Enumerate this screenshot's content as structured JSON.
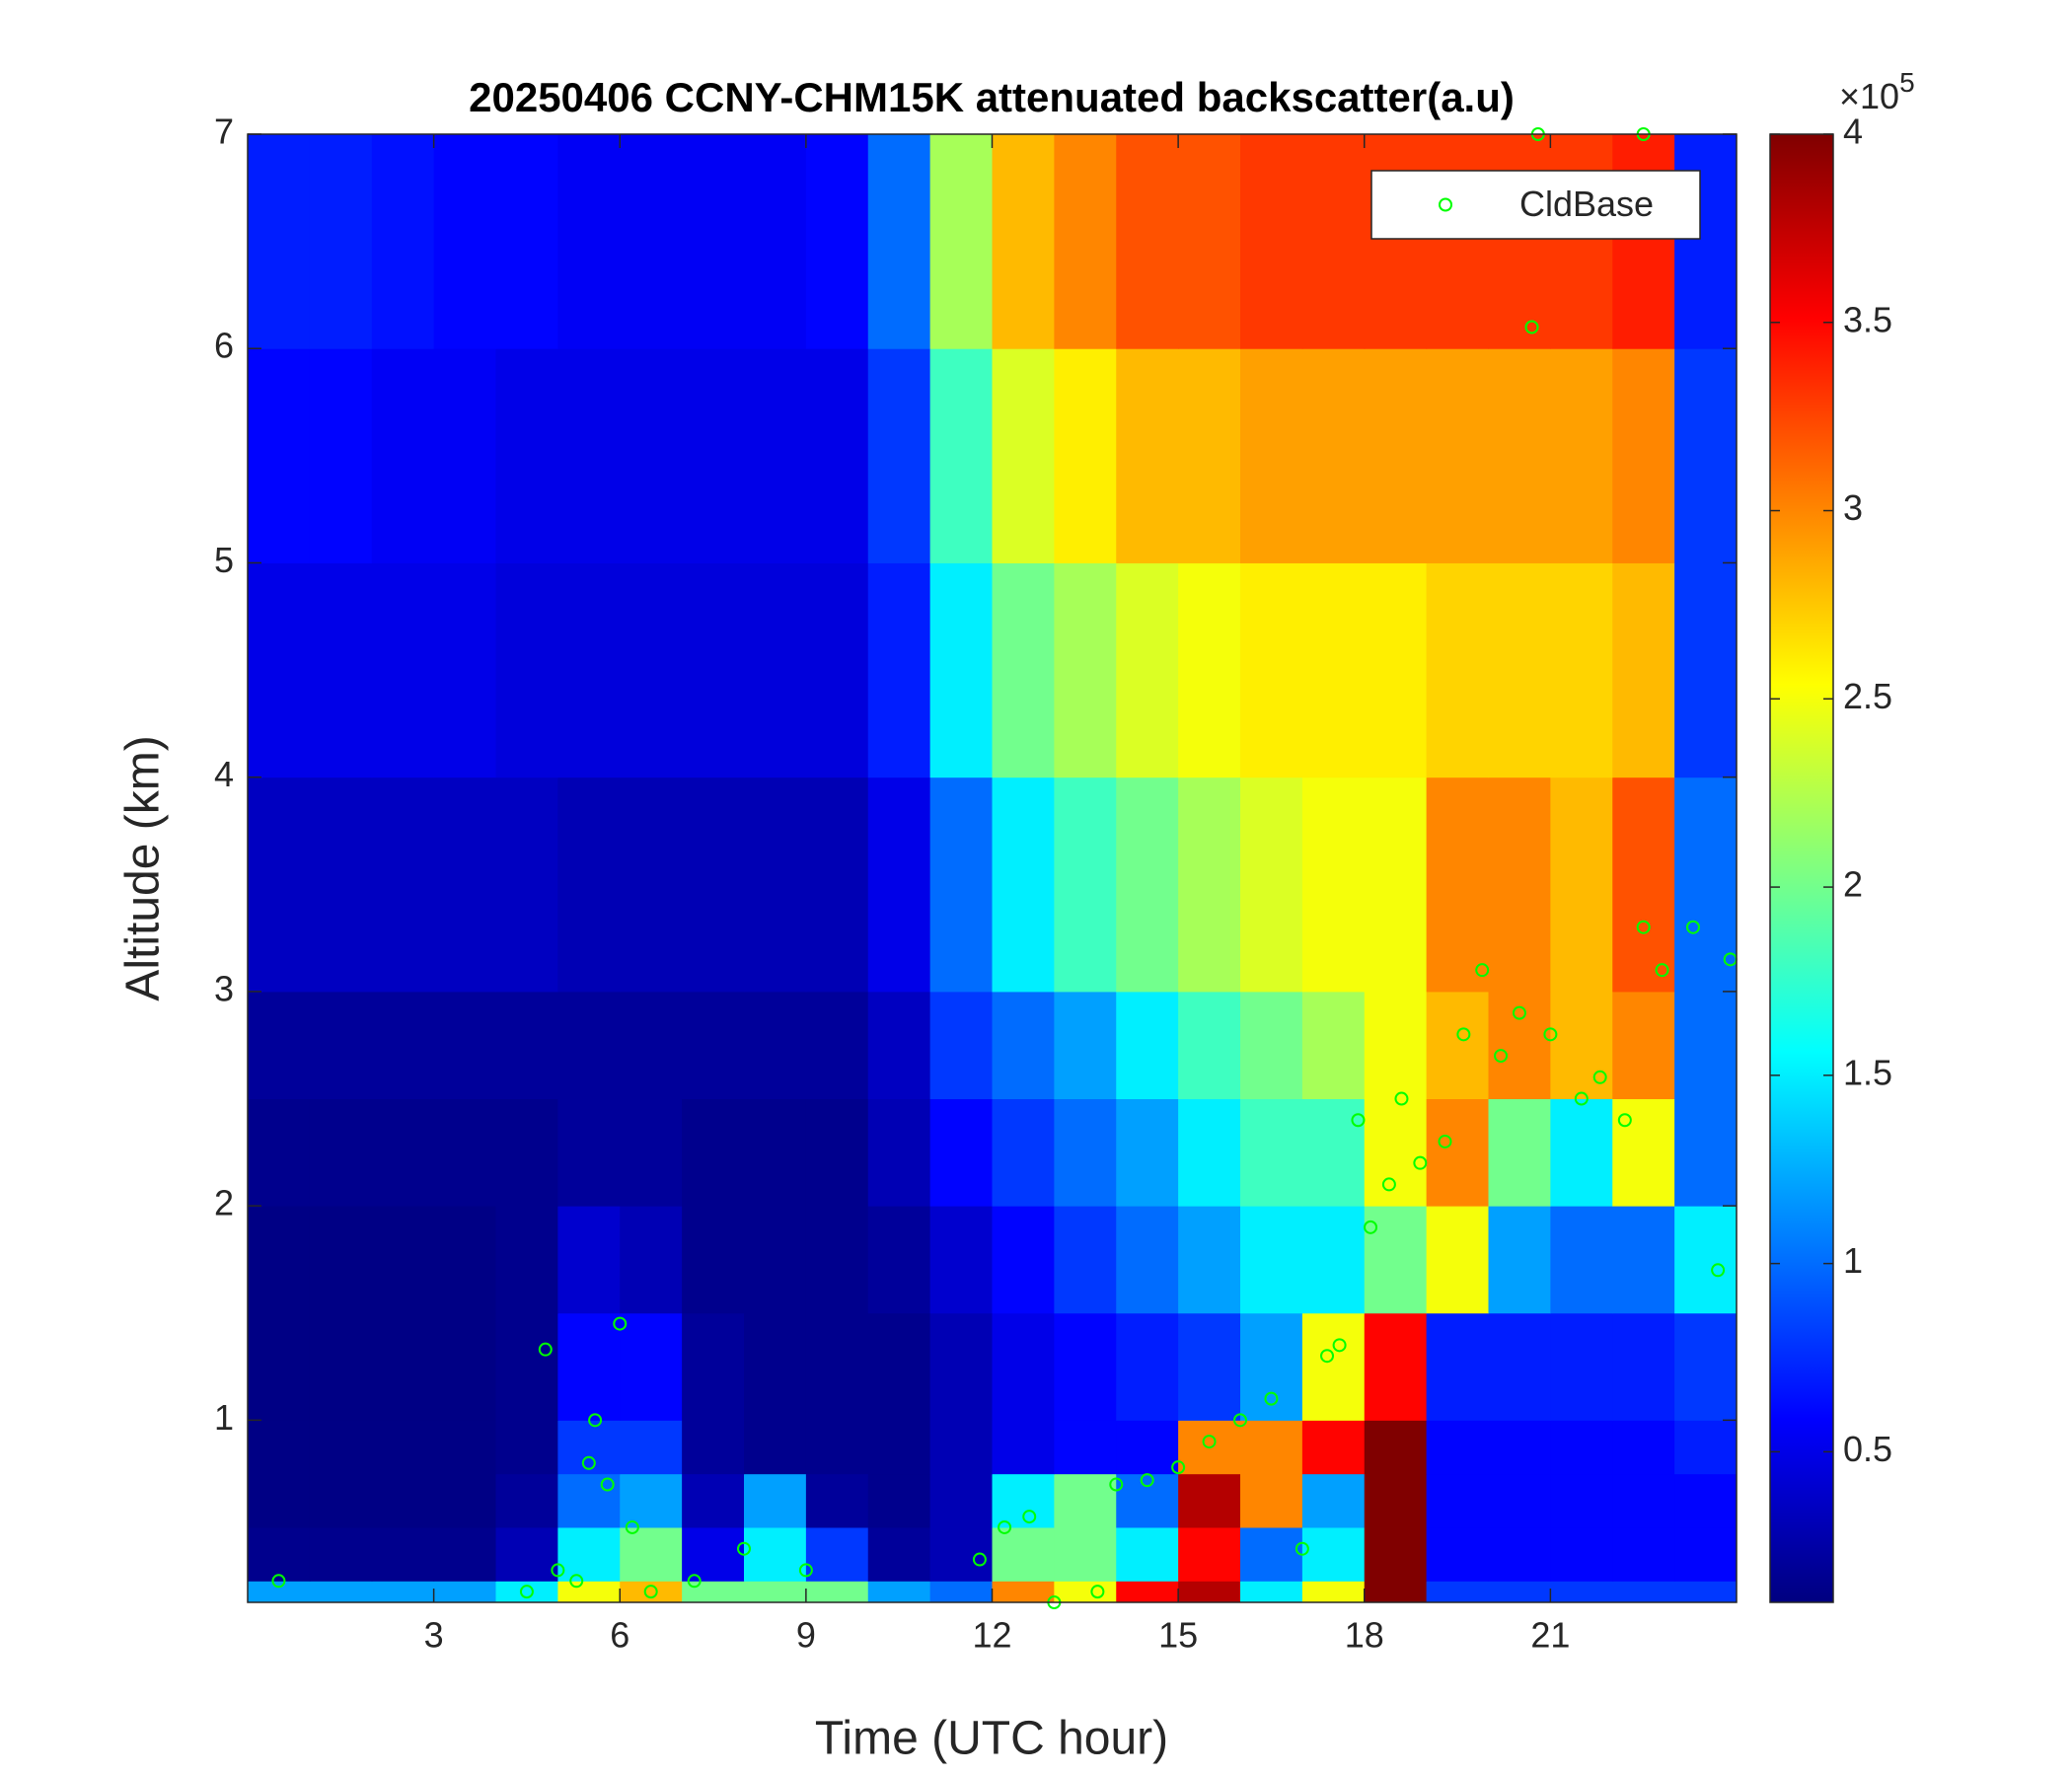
{
  "chart_data": {
    "type": "heatmap",
    "title": "20250406 CCNY-CHM15K attenuated backscatter(a.u)",
    "xlabel": "Time (UTC hour)",
    "ylabel": "Altitude (km)",
    "xlim": [
      0,
      24
    ],
    "ylim": [
      0.15,
      7
    ],
    "xticks": [
      3,
      6,
      9,
      12,
      15,
      18,
      21
    ],
    "yticks": [
      1,
      2,
      3,
      4,
      5,
      6,
      7
    ],
    "colormap": "jet",
    "clim": [
      0.1,
      4
    ],
    "cticks": [
      0.5,
      1,
      1.5,
      2,
      2.5,
      3,
      3.5,
      4
    ],
    "cbar_multiplier": "×10",
    "cbar_exponent": "5",
    "x_edges": [
      0,
      1,
      2,
      3,
      4,
      5,
      6,
      7,
      8,
      9,
      10,
      11,
      12,
      13,
      14,
      15,
      16,
      17,
      18,
      19,
      20,
      21,
      22,
      23,
      24
    ],
    "y_edges": [
      0.15,
      0.25,
      0.5,
      0.75,
      1,
      1.5,
      2,
      2.5,
      3,
      4,
      5,
      6,
      7
    ],
    "z": [
      [
        1.2,
        1.2,
        1.2,
        1.2,
        1.5,
        2.5,
        2.8,
        2.0,
        2.0,
        2.0,
        1.2,
        1.0,
        3.0,
        2.5,
        3.5,
        3.8,
        1.5,
        2.5,
        4.0,
        0.8,
        0.8,
        0.8,
        0.8,
        0.8
      ],
      [
        0.15,
        0.15,
        0.15,
        0.15,
        0.3,
        1.5,
        2.0,
        0.5,
        1.5,
        0.8,
        0.2,
        0.3,
        2.0,
        2.0,
        1.5,
        3.5,
        1.0,
        1.5,
        4.0,
        0.6,
        0.6,
        0.6,
        0.6,
        0.6
      ],
      [
        0.12,
        0.12,
        0.12,
        0.12,
        0.2,
        1.0,
        1.2,
        0.3,
        1.2,
        0.2,
        0.15,
        0.3,
        1.5,
        2.0,
        1.0,
        3.8,
        3.0,
        1.2,
        4.0,
        0.6,
        0.6,
        0.6,
        0.6,
        0.6
      ],
      [
        0.12,
        0.12,
        0.12,
        0.12,
        0.15,
        0.8,
        0.8,
        0.2,
        0.15,
        0.15,
        0.15,
        0.3,
        0.5,
        0.6,
        0.6,
        3.0,
        3.0,
        3.5,
        4.0,
        0.6,
        0.6,
        0.6,
        0.6,
        0.7
      ],
      [
        0.12,
        0.12,
        0.12,
        0.12,
        0.15,
        0.6,
        0.6,
        0.2,
        0.15,
        0.15,
        0.15,
        0.3,
        0.5,
        0.6,
        0.7,
        0.8,
        1.2,
        2.5,
        3.5,
        0.7,
        0.7,
        0.7,
        0.7,
        0.8
      ],
      [
        0.12,
        0.12,
        0.12,
        0.12,
        0.15,
        0.4,
        0.3,
        0.15,
        0.15,
        0.15,
        0.2,
        0.4,
        0.6,
        0.8,
        1.0,
        1.2,
        1.5,
        1.5,
        2.0,
        2.5,
        1.2,
        1.0,
        1.0,
        1.5
      ],
      [
        0.15,
        0.15,
        0.15,
        0.15,
        0.15,
        0.2,
        0.2,
        0.15,
        0.15,
        0.15,
        0.3,
        0.6,
        0.8,
        1.0,
        1.2,
        1.5,
        1.8,
        1.8,
        2.5,
        3.0,
        2.0,
        1.5,
        2.5,
        1.0
      ],
      [
        0.2,
        0.2,
        0.2,
        0.2,
        0.2,
        0.2,
        0.2,
        0.2,
        0.2,
        0.2,
        0.35,
        0.8,
        1.0,
        1.2,
        1.5,
        1.8,
        2.0,
        2.2,
        2.5,
        2.8,
        3.0,
        2.8,
        3.0,
        1.0
      ],
      [
        0.35,
        0.35,
        0.35,
        0.35,
        0.35,
        0.3,
        0.3,
        0.3,
        0.3,
        0.3,
        0.5,
        1.0,
        1.5,
        1.8,
        2.0,
        2.2,
        2.4,
        2.5,
        2.5,
        3.0,
        3.0,
        2.8,
        3.2,
        1.0
      ],
      [
        0.5,
        0.5,
        0.5,
        0.5,
        0.45,
        0.45,
        0.45,
        0.45,
        0.45,
        0.45,
        0.7,
        1.5,
        2.0,
        2.2,
        2.4,
        2.5,
        2.6,
        2.6,
        2.6,
        2.7,
        2.7,
        2.7,
        2.8,
        0.8
      ],
      [
        0.6,
        0.6,
        0.55,
        0.55,
        0.5,
        0.5,
        0.5,
        0.5,
        0.5,
        0.5,
        0.8,
        1.8,
        2.4,
        2.6,
        2.8,
        2.8,
        2.9,
        2.9,
        2.9,
        2.9,
        2.9,
        2.9,
        3.0,
        0.8
      ],
      [
        0.7,
        0.7,
        0.65,
        0.6,
        0.6,
        0.55,
        0.55,
        0.55,
        0.55,
        0.6,
        1.0,
        2.2,
        2.8,
        3.0,
        3.2,
        3.2,
        3.3,
        3.3,
        3.3,
        3.3,
        3.3,
        3.3,
        3.4,
        0.7
      ]
    ],
    "series": [
      {
        "name": "CldBase",
        "color": "#00ff00",
        "x": [
          0.5,
          4.5,
          4.8,
          5.0,
          5.3,
          5.5,
          5.6,
          5.8,
          6.0,
          6.2,
          6.5,
          7.2,
          8.0,
          9.0,
          11.8,
          12.2,
          12.6,
          13.0,
          13.7,
          14.0,
          14.5,
          15.0,
          15.5,
          16.0,
          16.5,
          17.0,
          17.4,
          17.6,
          17.9,
          18.1,
          18.4,
          18.6,
          18.9,
          19.3,
          19.6,
          19.9,
          20.2,
          20.5,
          20.7,
          21.0,
          21.5,
          21.8,
          22.2,
          22.5,
          22.8,
          23.3,
          23.7,
          23.9,
          20.8,
          22.5
        ],
        "y": [
          0.25,
          0.2,
          1.33,
          0.3,
          0.25,
          0.8,
          1.0,
          0.7,
          1.45,
          0.5,
          0.2,
          0.25,
          0.4,
          0.3,
          0.35,
          0.5,
          0.55,
          0.15,
          0.2,
          0.7,
          0.72,
          0.78,
          0.9,
          1.0,
          1.1,
          0.4,
          1.3,
          1.35,
          2.4,
          1.9,
          2.1,
          2.5,
          2.2,
          2.3,
          2.8,
          3.1,
          2.7,
          2.9,
          6.1,
          2.8,
          2.5,
          2.6,
          2.4,
          3.3,
          3.1,
          3.3,
          1.7,
          3.15,
          7.0,
          7.0
        ]
      }
    ],
    "legend": "upper right"
  }
}
